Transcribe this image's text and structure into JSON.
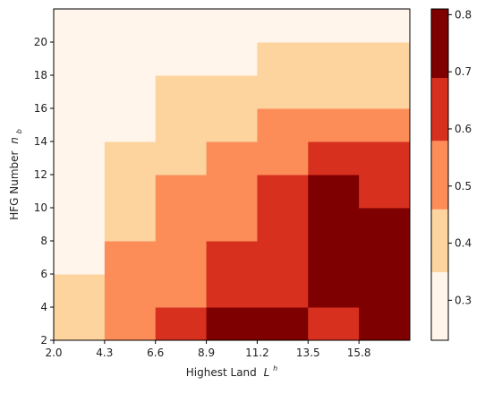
{
  "chart_data": {
    "type": "heatmap",
    "title": "",
    "xlabel": "Highest Land",
    "xlabel_symbol": "L",
    "xlabel_sup": "h",
    "ylabel": "HFG Number",
    "ylabel_symbol": "n",
    "ylabel_sub": "b",
    "x_edges": [
      2.0,
      4.3,
      6.6,
      8.9,
      11.2,
      13.5,
      15.8,
      18.1
    ],
    "x_tick_labels": [
      "2.0",
      "4.3",
      "6.6",
      "8.9",
      "11.2",
      "13.5",
      "15.8"
    ],
    "y_edges": [
      2,
      4,
      6,
      8,
      10,
      12,
      14,
      16,
      18,
      20,
      22
    ],
    "y_tick_labels": [
      "2",
      "4",
      "6",
      "8",
      "10",
      "12",
      "14",
      "16",
      "18",
      "20"
    ],
    "values_rows_bottom_to_top": [
      [
        0.4,
        0.5,
        0.6,
        0.8,
        0.8,
        0.6,
        0.8
      ],
      [
        0.4,
        0.5,
        0.5,
        0.6,
        0.6,
        0.8,
        0.8
      ],
      [
        0.3,
        0.5,
        0.5,
        0.6,
        0.6,
        0.8,
        0.8
      ],
      [
        0.3,
        0.4,
        0.5,
        0.5,
        0.6,
        0.8,
        0.8
      ],
      [
        0.3,
        0.4,
        0.5,
        0.5,
        0.6,
        0.8,
        0.6
      ],
      [
        0.3,
        0.4,
        0.4,
        0.5,
        0.5,
        0.6,
        0.6
      ],
      [
        0.3,
        0.3,
        0.4,
        0.4,
        0.5,
        0.5,
        0.5
      ],
      [
        0.3,
        0.3,
        0.4,
        0.4,
        0.4,
        0.4,
        0.4
      ],
      [
        0.3,
        0.3,
        0.3,
        0.3,
        0.4,
        0.4,
        0.4
      ],
      [
        0.3,
        0.3,
        0.3,
        0.3,
        0.3,
        0.3,
        0.3
      ]
    ],
    "colorbar": {
      "boundaries": [
        0.23,
        0.35,
        0.46,
        0.58,
        0.69,
        0.81
      ],
      "colors": [
        "#fff5eb",
        "#fdd49e",
        "#fc8d59",
        "#d7301f",
        "#7f0000"
      ],
      "tick_values": [
        0.3,
        0.4,
        0.5,
        0.6,
        0.7,
        0.8
      ],
      "tick_labels": [
        "0.3",
        "0.4",
        "0.5",
        "0.6",
        "0.7",
        "0.8"
      ]
    },
    "grid": false,
    "legend": "colorbar-right"
  }
}
